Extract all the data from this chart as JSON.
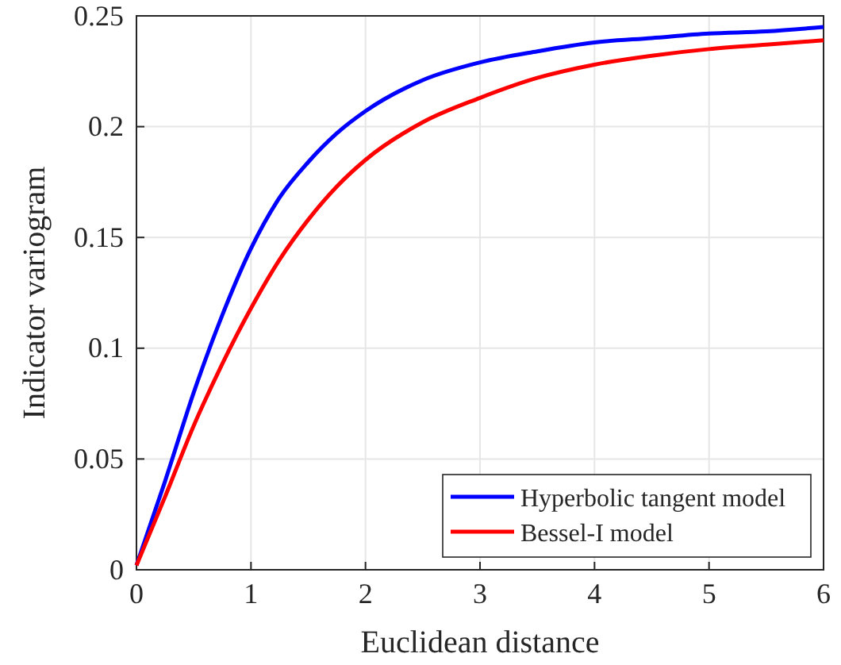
{
  "chart_data": {
    "type": "line",
    "xlabel": "Euclidean distance",
    "ylabel": "Indicator variogram",
    "xlim": [
      0,
      6
    ],
    "ylim": [
      0,
      0.25
    ],
    "xticks": [
      0,
      1,
      2,
      3,
      4,
      5,
      6
    ],
    "yticks": [
      0,
      0.05,
      0.1,
      0.15,
      0.2,
      0.25
    ],
    "grid": true,
    "legend": "bottom right",
    "line_style": "solid",
    "x": [
      0,
      0.25,
      0.5,
      0.75,
      1,
      1.25,
      1.5,
      1.75,
      2,
      2.5,
      3,
      3.5,
      4,
      4.5,
      5,
      5.5,
      6
    ],
    "series": [
      {
        "name": "Hyperbolic tangent model",
        "color": "#0000ff",
        "values": [
          0.002,
          0.04,
          0.08,
          0.115,
          0.145,
          0.168,
          0.184,
          0.197,
          0.207,
          0.221,
          0.229,
          0.234,
          0.238,
          0.24,
          0.242,
          0.243,
          0.245
        ]
      },
      {
        "name": "Bessel-I model",
        "color": "#ff0000",
        "values": [
          0.002,
          0.033,
          0.065,
          0.093,
          0.118,
          0.14,
          0.158,
          0.173,
          0.185,
          0.202,
          0.213,
          0.222,
          0.228,
          0.232,
          0.235,
          0.237,
          0.239
        ]
      }
    ]
  }
}
